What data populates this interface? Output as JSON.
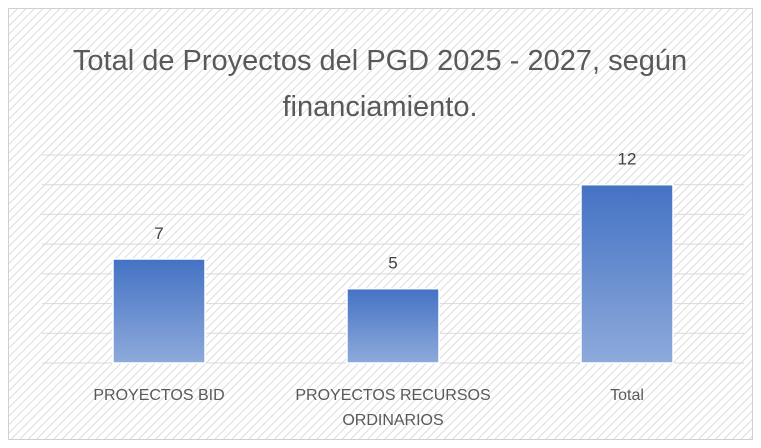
{
  "chart_data": {
    "type": "bar",
    "title": "Total de Proyectos del PGD 2025 - 2027, según financiamiento.",
    "categories": [
      "PROYECTOS BID",
      "PROYECTOS RECURSOS ORDINARIOS",
      "Total"
    ],
    "values": [
      7,
      5,
      12
    ],
    "color": "#4472c4",
    "ylim": [
      0,
      14
    ],
    "yticks": [
      0,
      2,
      4,
      6,
      8,
      10,
      12,
      14
    ],
    "grid": true
  }
}
